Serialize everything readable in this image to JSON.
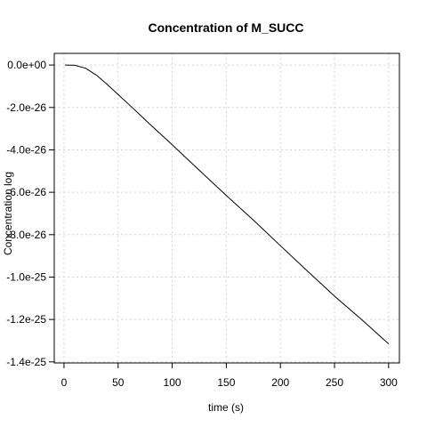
{
  "chart_data": {
    "type": "line",
    "title": "Concentration of M_SUCC",
    "xlabel": "time (s)",
    "ylabel": "Concentration log",
    "xlim": [
      0,
      300
    ],
    "ylim": [
      -1.4e-25,
      0
    ],
    "grid": true,
    "x_ticks": [
      0,
      50,
      100,
      150,
      200,
      250,
      300
    ],
    "x_tick_labels": [
      "0",
      "50",
      "100",
      "150",
      "200",
      "250",
      "300"
    ],
    "y_ticks": [
      0,
      -2e-26,
      -4e-26,
      -6e-26,
      -8e-26,
      -1e-25,
      -1.2e-25,
      -1.4e-25
    ],
    "y_tick_labels": [
      "0.0e+00",
      "-2.0e-26",
      "-4.0e-26",
      "-6.0e-26",
      "-8.0e-26",
      "-1.0e-25",
      "-1.2e-25",
      "-1.4e-25"
    ],
    "series": [
      {
        "color": "#000000",
        "x": [
          1,
          10,
          20,
          30,
          40,
          50,
          60,
          70,
          80,
          90,
          100,
          125,
          150,
          175,
          200,
          225,
          250,
          275,
          300
        ],
        "y": [
          0,
          -1e-28,
          -1.5e-27,
          -4.8e-27,
          -9.2e-27,
          -1.39e-26,
          -1.86e-26,
          -2.34e-26,
          -2.82e-26,
          -3.29e-26,
          -3.76e-26,
          -4.96e-26,
          -6.15e-26,
          -7.31e-26,
          -8.52e-26,
          -9.72e-26,
          -1.09e-25,
          -1.2e-25,
          -1.315e-25
        ]
      }
    ]
  }
}
